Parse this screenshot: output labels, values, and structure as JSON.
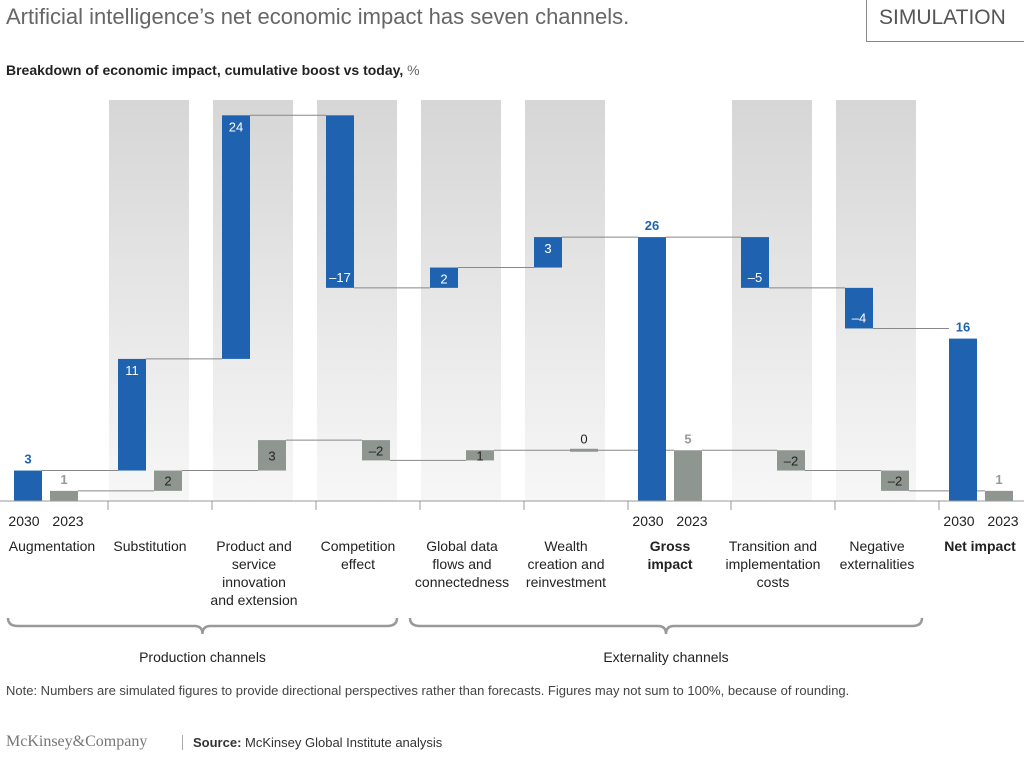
{
  "header": {
    "title": "Artificial intelligence’s net economic impact has seven channels.",
    "badge": "SIMULATION"
  },
  "chart_data": {
    "type": "bar",
    "subtype": "waterfall",
    "title": "Breakdown of economic impact, cumulative boost vs today,",
    "unit": "%",
    "categories": [
      "Augmentation",
      "Substitution",
      "Product and service innovation and extension",
      "Competition effect",
      "Global data flows and connectedness",
      "Wealth creation and reinvestment",
      "Gross impact",
      "Transition and implementation costs",
      "Negative externalities",
      "Net impact"
    ],
    "total_categories": [
      "Augmentation",
      "Gross impact",
      "Net impact"
    ],
    "series": [
      {
        "name": "2030",
        "color": "#1f63b0",
        "values": [
          3,
          11,
          24,
          -17,
          2,
          3,
          26,
          -5,
          -4,
          16
        ]
      },
      {
        "name": "2023",
        "color": "#8f9690",
        "values": [
          1,
          2,
          3,
          -2,
          1,
          0,
          5,
          -2,
          -2,
          1
        ]
      }
    ],
    "groups": [
      {
        "label": "Production channels",
        "range": [
          "Augmentation",
          "Competition effect"
        ]
      },
      {
        "label": "Externality channels",
        "range": [
          "Global data flows and connectedness",
          "Negative externalities"
        ]
      }
    ]
  },
  "note": "Note: Numbers are simulated figures to provide directional perspectives rather than forecasts. Figures may not sum to 100%, because of rounding.",
  "footer": {
    "logo": "McKinsey&Company",
    "source_label": "Source:",
    "source": "McKinsey Global Institute analysis"
  }
}
